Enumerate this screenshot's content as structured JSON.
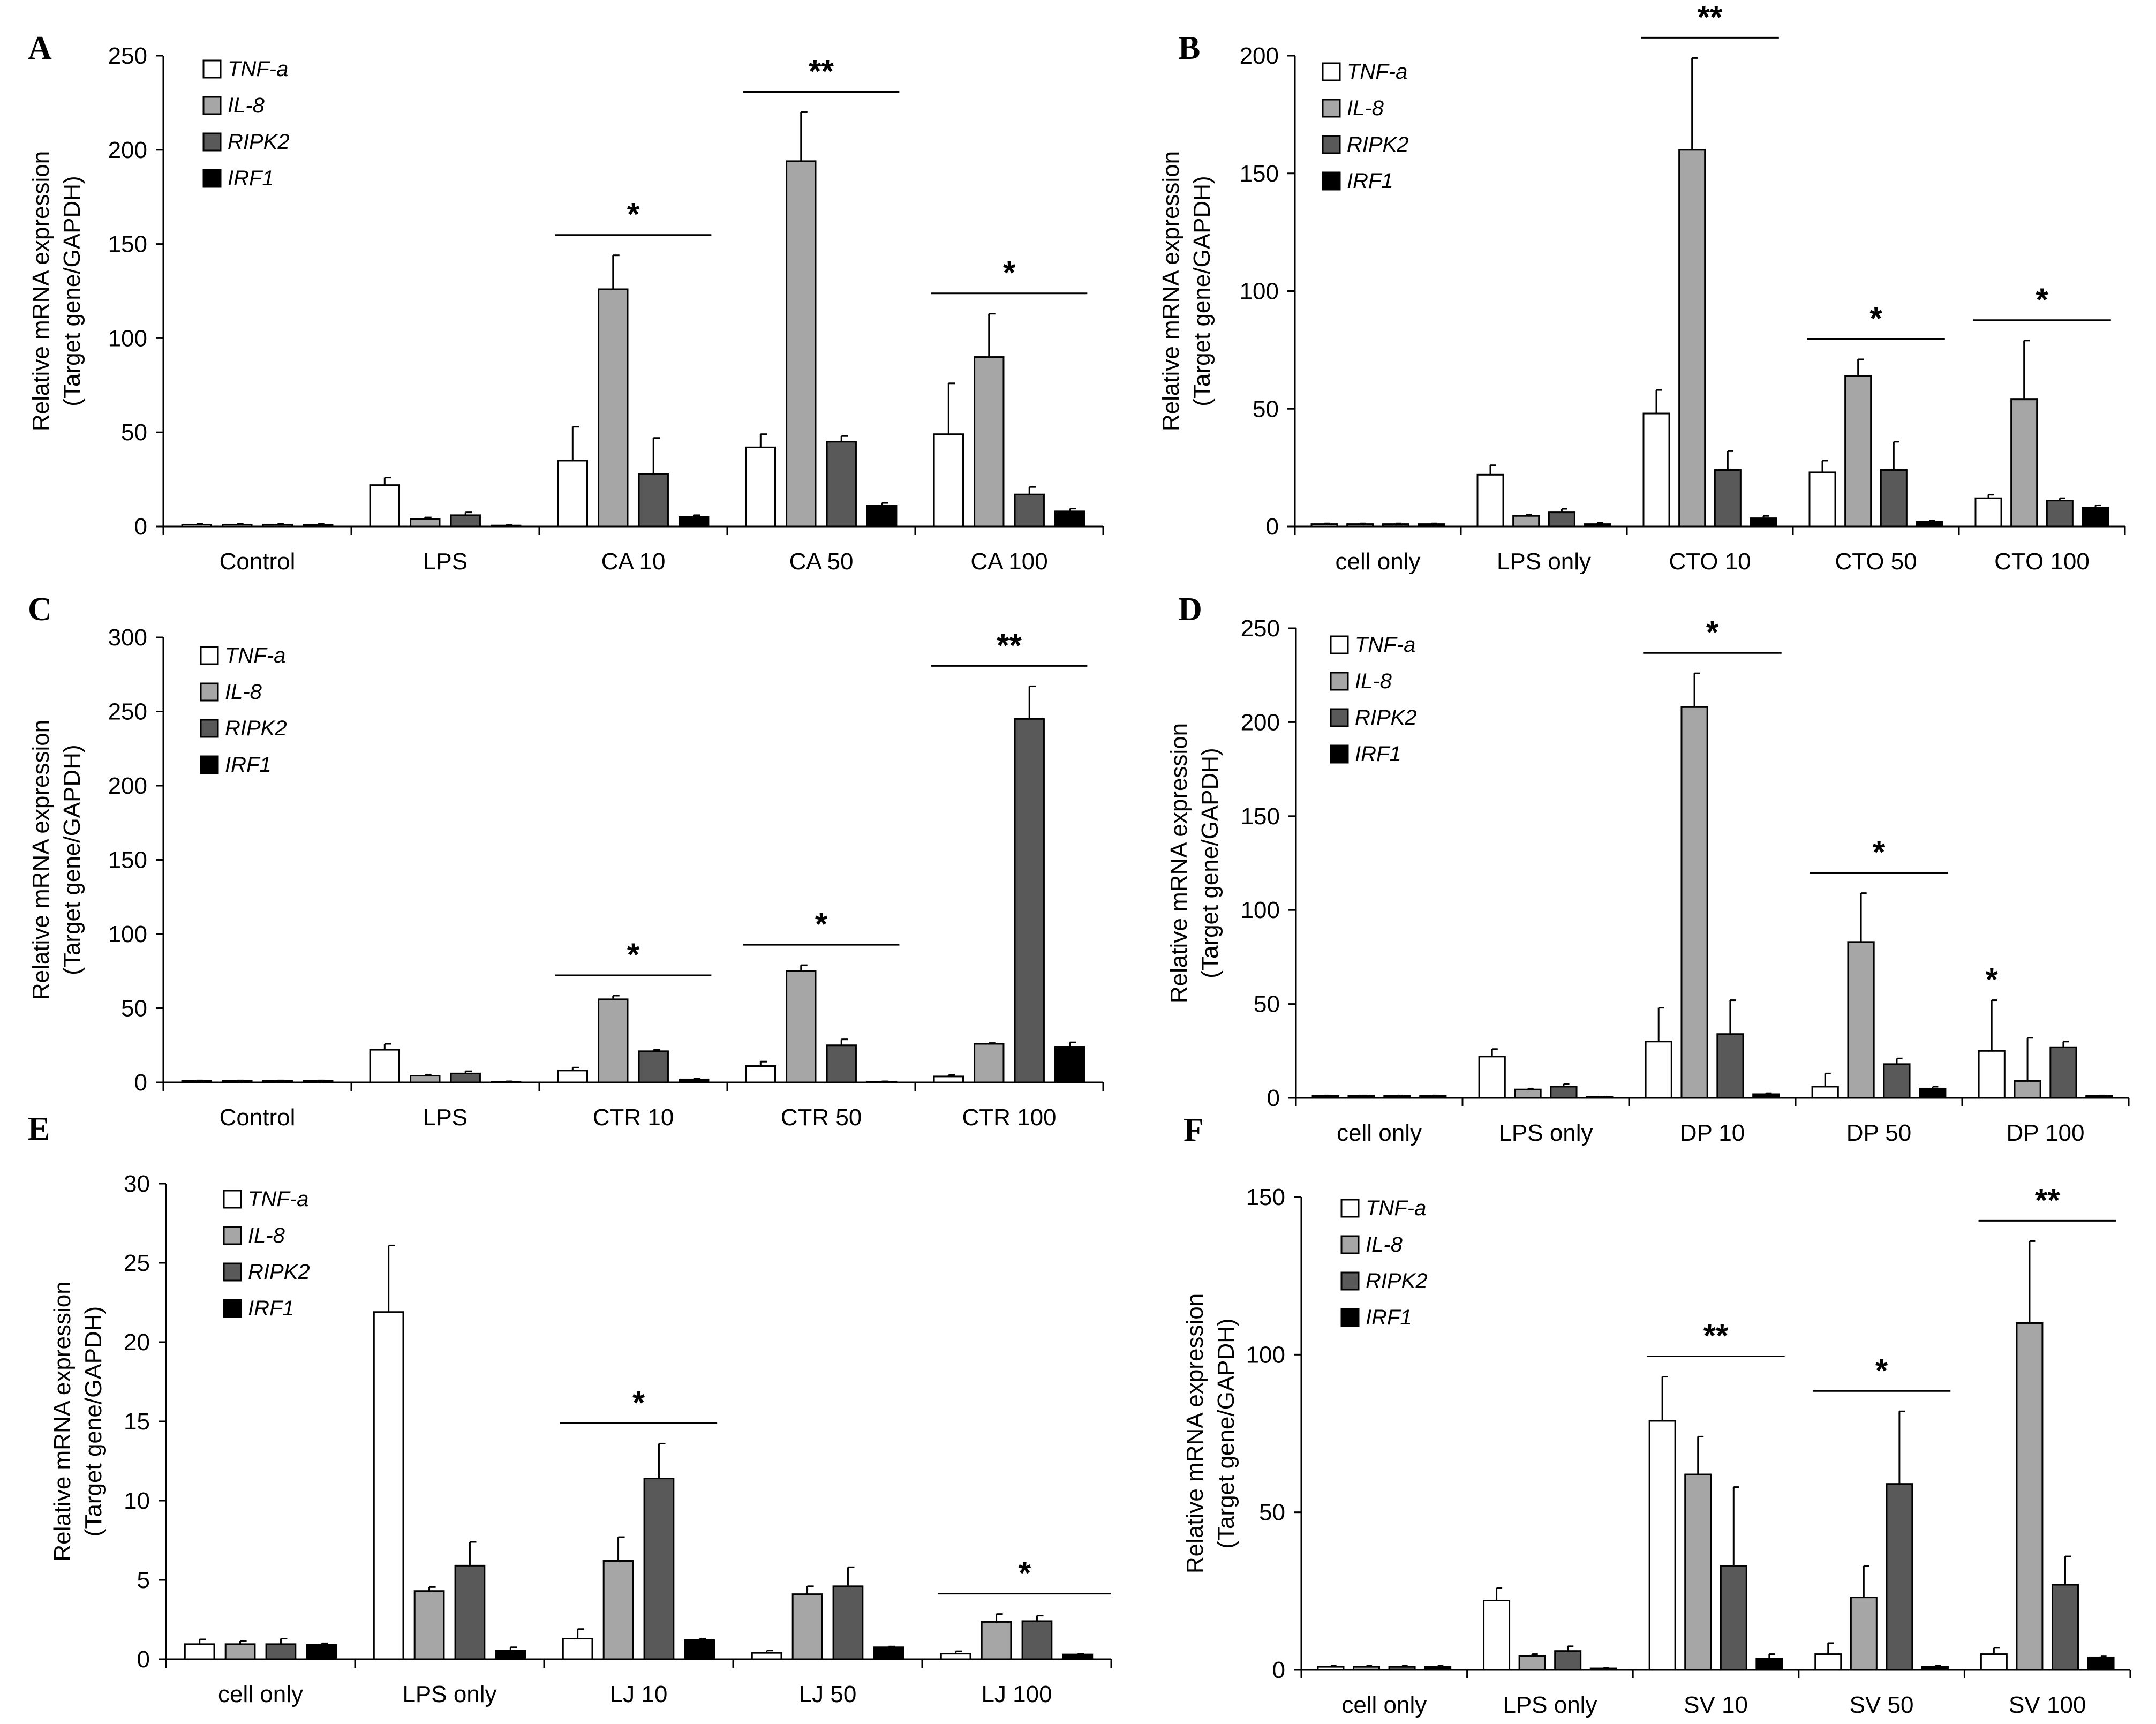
{
  "figure": {
    "ylabel_line1": "Relative mRNA expression",
    "ylabel_line2": "(Target gene/GAPDH)"
  },
  "legend": [
    "TNF-a",
    "IL-8",
    "RIPK2",
    "IRF1"
  ],
  "colors": {
    "TNF-a": "#ffffff",
    "IL-8": "#a6a6a6",
    "RIPK2": "#595959",
    "IRF1": "#000000",
    "axis": "#000000"
  },
  "chart_data": [
    {
      "panel": "A",
      "type": "bar",
      "ylim": [
        0,
        250
      ],
      "yticks": [
        0,
        50,
        100,
        150,
        200,
        250
      ],
      "categories": [
        "Control",
        "LPS",
        "CA 10",
        "CA 50",
        "CA 100"
      ],
      "series": [
        {
          "name": "TNF-a",
          "values": [
            1,
            22,
            35,
            42,
            49
          ],
          "errors": [
            0.3,
            4,
            18,
            7,
            27
          ]
        },
        {
          "name": "IL-8",
          "values": [
            1,
            4,
            126,
            194,
            90
          ],
          "errors": [
            0.3,
            0.8,
            18,
            26,
            23
          ]
        },
        {
          "name": "RIPK2",
          "values": [
            1,
            6,
            28,
            45,
            17
          ],
          "errors": [
            0.3,
            1.5,
            19,
            3,
            4
          ]
        },
        {
          "name": "IRF1",
          "values": [
            1,
            0.5,
            5,
            11,
            8
          ],
          "errors": [
            0.3,
            0.2,
            1,
            1.5,
            1.5
          ]
        }
      ],
      "significance": [
        {
          "category": "CA 10",
          "label": "*"
        },
        {
          "category": "CA 50",
          "label": "**"
        },
        {
          "category": "CA 100",
          "label": "*"
        }
      ]
    },
    {
      "panel": "B",
      "type": "bar",
      "ylim": [
        0,
        200
      ],
      "yticks": [
        0,
        50,
        100,
        150,
        200
      ],
      "categories": [
        "cell only",
        "LPS only",
        "CTO 10",
        "CTO 50",
        "CTO 100"
      ],
      "series": [
        {
          "name": "TNF-a",
          "values": [
            1,
            22,
            48,
            23,
            12
          ],
          "errors": [
            0.3,
            4,
            10,
            5,
            1.5
          ]
        },
        {
          "name": "IL-8",
          "values": [
            1,
            4.5,
            160,
            64,
            54
          ],
          "errors": [
            0.3,
            0.5,
            39,
            7,
            25
          ]
        },
        {
          "name": "RIPK2",
          "values": [
            1,
            6,
            24,
            24,
            11
          ],
          "errors": [
            0.3,
            1.5,
            8,
            12,
            1
          ]
        },
        {
          "name": "IRF1",
          "values": [
            1,
            1,
            3.5,
            2,
            8
          ],
          "errors": [
            0.3,
            0.5,
            1,
            0.5,
            1
          ]
        }
      ],
      "significance": [
        {
          "category": "CTO 10",
          "label": "**"
        },
        {
          "category": "CTO 50",
          "label": "*"
        },
        {
          "category": "CTO 100",
          "label": "*"
        }
      ]
    },
    {
      "panel": "C",
      "type": "bar",
      "ylim": [
        0,
        300
      ],
      "yticks": [
        0,
        50,
        100,
        150,
        200,
        250,
        300
      ],
      "categories": [
        "Control",
        "LPS",
        "CTR 10",
        "CTR 50",
        "CTR 100"
      ],
      "series": [
        {
          "name": "TNF-a",
          "values": [
            1,
            22,
            8,
            11,
            4
          ],
          "errors": [
            0.3,
            4,
            2,
            3,
            1
          ]
        },
        {
          "name": "IL-8",
          "values": [
            1,
            4.5,
            56,
            75,
            26
          ],
          "errors": [
            0.3,
            0.5,
            2.5,
            4,
            0.5
          ]
        },
        {
          "name": "RIPK2",
          "values": [
            1,
            6,
            21,
            25,
            245
          ],
          "errors": [
            0.3,
            1.5,
            1,
            4,
            22
          ]
        },
        {
          "name": "IRF1",
          "values": [
            1,
            0.5,
            2,
            0.5,
            24
          ],
          "errors": [
            0.3,
            0.2,
            0.5,
            0.2,
            3
          ]
        }
      ],
      "significance": [
        {
          "category": "CTR 10",
          "label": "*"
        },
        {
          "category": "CTR 50",
          "label": "*"
        },
        {
          "category": "CTR 100",
          "label": "**"
        }
      ]
    },
    {
      "panel": "D",
      "type": "bar",
      "ylim": [
        0,
        250
      ],
      "yticks": [
        0,
        50,
        100,
        150,
        200,
        250
      ],
      "categories": [
        "cell only",
        "LPS only",
        "DP 10",
        "DP 50",
        "DP 100"
      ],
      "series": [
        {
          "name": "TNF-a",
          "values": [
            1,
            22,
            30,
            6,
            25
          ],
          "errors": [
            0.3,
            4,
            18,
            7,
            27
          ]
        },
        {
          "name": "IL-8",
          "values": [
            1,
            4.5,
            208,
            83,
            9
          ],
          "errors": [
            0.3,
            0.5,
            18,
            26,
            23
          ]
        },
        {
          "name": "RIPK2",
          "values": [
            1,
            6,
            34,
            18,
            27
          ],
          "errors": [
            0.3,
            1.5,
            18,
            3,
            3
          ]
        },
        {
          "name": "IRF1",
          "values": [
            1,
            0.5,
            2,
            5,
            1
          ],
          "errors": [
            0.3,
            0.2,
            0.5,
            1,
            0.3
          ]
        }
      ],
      "significance": [
        {
          "category": "DP 10",
          "label": "*"
        },
        {
          "category": "DP 50",
          "label": "*"
        },
        {
          "category": "DP 100",
          "label": "*"
        }
      ]
    },
    {
      "panel": "E",
      "type": "bar",
      "ylim": [
        0,
        30
      ],
      "yticks": [
        0,
        5,
        10,
        15,
        20,
        25,
        30
      ],
      "categories": [
        "cell only",
        "LPS only",
        "LJ 10",
        "LJ 50",
        "LJ 100"
      ],
      "series": [
        {
          "name": "TNF-a",
          "values": [
            0.95,
            21.9,
            1.3,
            0.4,
            0.35
          ],
          "errors": [
            0.3,
            4.2,
            0.6,
            0.15,
            0.15
          ]
        },
        {
          "name": "IL-8",
          "values": [
            0.95,
            4.3,
            6.2,
            4.1,
            2.35
          ],
          "errors": [
            0.2,
            0.25,
            1.5,
            0.5,
            0.5
          ]
        },
        {
          "name": "RIPK2",
          "values": [
            0.95,
            5.9,
            11.4,
            4.6,
            2.4
          ],
          "errors": [
            0.35,
            1.5,
            2.2,
            1.2,
            0.35
          ]
        },
        {
          "name": "IRF1",
          "values": [
            0.9,
            0.55,
            1.2,
            0.75,
            0.3
          ],
          "errors": [
            0.1,
            0.2,
            0.1,
            0.05,
            0.05
          ]
        }
      ],
      "significance": [
        {
          "category": "LJ 10",
          "label": "*"
        },
        {
          "category": "LJ 100",
          "label": "*",
          "wide": true
        }
      ]
    },
    {
      "panel": "F",
      "type": "bar",
      "ylim": [
        0,
        150
      ],
      "yticks": [
        0,
        50,
        100,
        150
      ],
      "categories": [
        "cell only",
        "LPS only",
        "SV 10",
        "SV 50",
        "SV 100"
      ],
      "series": [
        {
          "name": "TNF-a",
          "values": [
            1,
            22,
            79,
            5,
            5
          ],
          "errors": [
            0.3,
            4,
            14,
            3.5,
            2
          ]
        },
        {
          "name": "IL-8",
          "values": [
            1,
            4.5,
            62,
            23,
            110
          ],
          "errors": [
            0.3,
            0.5,
            12,
            10,
            26
          ]
        },
        {
          "name": "RIPK2",
          "values": [
            1,
            6,
            33,
            59,
            27
          ],
          "errors": [
            0.3,
            1.5,
            25,
            23,
            9
          ]
        },
        {
          "name": "IRF1",
          "values": [
            1,
            0.5,
            3.5,
            1,
            4
          ],
          "errors": [
            0.3,
            0.2,
            1.5,
            0.3,
            0.3
          ]
        }
      ],
      "significance": [
        {
          "category": "SV 10",
          "label": "**"
        },
        {
          "category": "SV 50",
          "label": "*"
        },
        {
          "category": "SV 100",
          "label": "**"
        }
      ]
    }
  ]
}
